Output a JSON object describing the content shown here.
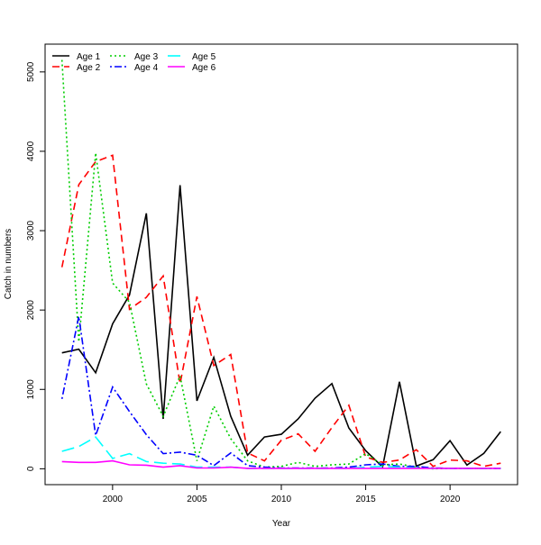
{
  "chart_data": {
    "type": "line",
    "title": "",
    "xlabel": "Year",
    "ylabel": "Catch in numbers",
    "xlim": [
      1996.0,
      2024.0
    ],
    "ylim": [
      -200,
      5350
    ],
    "xticks": [
      2000,
      2005,
      2010,
      2015,
      2020
    ],
    "yticks": [
      0,
      1000,
      2000,
      3000,
      4000,
      5000
    ],
    "grid": false,
    "legend_position": "top-left",
    "x": [
      1997,
      1998,
      1999,
      2000,
      2001,
      2002,
      2003,
      2004,
      2005,
      2006,
      2007,
      2008,
      2009,
      2010,
      2011,
      2012,
      2013,
      2014,
      2015,
      2016,
      2017,
      2018,
      2019,
      2020,
      2021,
      2022,
      2023
    ],
    "series": [
      {
        "name": "Age 1",
        "color": "#000000",
        "dash": "",
        "values": [
          1460,
          1507,
          1210,
          1826,
          2190,
          3219,
          628,
          3573,
          856,
          1404,
          662,
          171,
          400,
          434,
          628,
          890,
          1073,
          514,
          228,
          23,
          1096,
          34,
          114,
          354,
          46,
          194,
          468
        ]
      },
      {
        "name": "Age 2",
        "color": "#FF0000",
        "dash": "8,5",
        "values": [
          2540,
          3580,
          3870,
          3950,
          2010,
          2160,
          2430,
          1070,
          2170,
          1300,
          1440,
          200,
          100,
          360,
          440,
          220,
          520,
          800,
          150,
          80,
          110,
          240,
          30,
          110,
          100,
          30,
          70
        ]
      },
      {
        "name": "Age 3",
        "color": "#00CD00",
        "dash": "2,3",
        "values": [
          5150,
          1600,
          3980,
          2340,
          2100,
          1070,
          660,
          1170,
          100,
          790,
          380,
          100,
          20,
          30,
          80,
          30,
          50,
          60,
          190,
          50,
          60,
          20,
          0,
          5,
          5,
          5,
          5
        ]
      },
      {
        "name": "Age 4",
        "color": "#0000FF",
        "dash": "2,3,8,3",
        "values": [
          880,
          1920,
          420,
          1030,
          720,
          430,
          190,
          210,
          170,
          40,
          200,
          40,
          20,
          10,
          10,
          10,
          10,
          20,
          50,
          60,
          30,
          30,
          10,
          5,
          5,
          5,
          5
        ]
      },
      {
        "name": "Age 5",
        "color": "#00FFFF",
        "dash": "14,6",
        "values": [
          220,
          280,
          400,
          130,
          190,
          90,
          70,
          60,
          20,
          20,
          20,
          5,
          5,
          5,
          5,
          5,
          5,
          5,
          20,
          30,
          20,
          10,
          5,
          5,
          5,
          5,
          5
        ]
      },
      {
        "name": "Age 6",
        "color": "#FF00FF",
        "dash": "",
        "values": [
          90,
          80,
          80,
          100,
          50,
          45,
          20,
          40,
          10,
          10,
          20,
          5,
          5,
          5,
          5,
          5,
          5,
          5,
          5,
          5,
          5,
          5,
          5,
          5,
          5,
          5,
          5
        ]
      }
    ]
  }
}
